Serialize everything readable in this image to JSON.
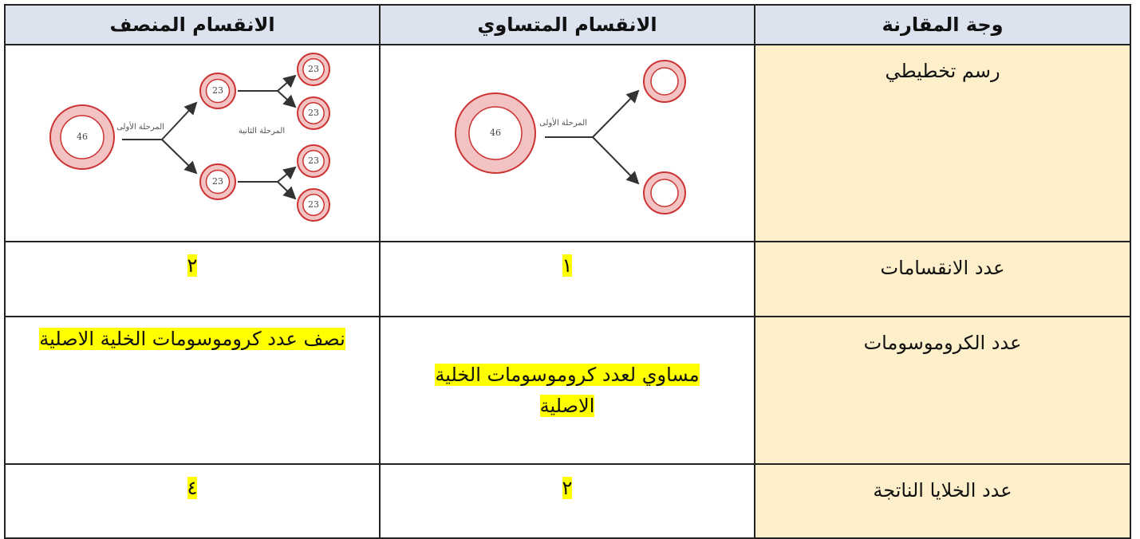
{
  "table": {
    "header": [
      "وجة المقارنة",
      "الانقسام المتساوي",
      "الانقسام المنصف"
    ],
    "rows": [
      [
        "رسم تخطيطي"
      ],
      [
        "عدد الانقسامات",
        "١",
        "٢"
      ],
      [
        "عدد الكروموسومات",
        "مساوي لعدد كروموسومات الخلية الاصلية",
        "نصف عدد كروموسومات الخلية الاصلية"
      ],
      [
        "عدد الخلايا الناتجة",
        "٢",
        "٤"
      ]
    ]
  },
  "diagrams": {
    "mitosis": {
      "parent": "46",
      "stage": "المرحلة الأولى"
    },
    "meiosis": {
      "parent": "46",
      "stage1": "المرحلة الأولى",
      "stage2": "المرحلة الثانية",
      "daughters": [
        "23",
        "23"
      ],
      "granddaughters": [
        "23",
        "23",
        "23",
        "23"
      ]
    }
  }
}
